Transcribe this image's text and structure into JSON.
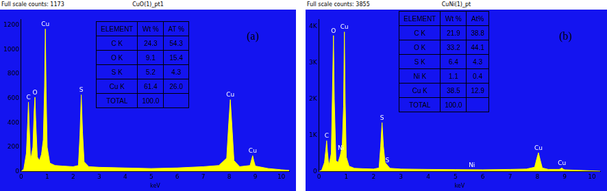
{
  "chart_data": [
    {
      "type": "area",
      "title": "CuO(1)_pt1",
      "subtitle": "Full scale counts: 1173",
      "panel_label": "(a)",
      "x_label": "keV",
      "color": "#ffff00",
      "grid": false,
      "x": [
        0,
        0.1,
        0.2,
        0.25,
        0.28,
        0.31,
        0.36,
        0.45,
        0.5,
        0.53,
        0.56,
        0.62,
        0.7,
        0.78,
        0.85,
        0.9,
        0.93,
        0.96,
        1.0,
        1.1,
        1.3,
        1.6,
        2.0,
        2.2,
        2.26,
        2.31,
        2.36,
        2.42,
        2.6,
        3.0,
        4.0,
        5.0,
        6.0,
        7.0,
        7.6,
        7.9,
        7.98,
        8.04,
        8.1,
        8.18,
        8.4,
        8.8,
        8.86,
        8.9,
        8.94,
        9.0,
        9.5,
        10.0,
        10.3
      ],
      "values": [
        0,
        20,
        150,
        400,
        570,
        380,
        90,
        200,
        500,
        610,
        420,
        120,
        90,
        140,
        260,
        700,
        1170,
        650,
        200,
        70,
        50,
        45,
        40,
        50,
        300,
        630,
        320,
        80,
        40,
        35,
        30,
        25,
        30,
        40,
        50,
        110,
        400,
        590,
        380,
        90,
        40,
        50,
        100,
        130,
        90,
        45,
        25,
        15,
        10
      ],
      "xlim": [
        0,
        10.3
      ],
      "xticks": [
        0,
        1,
        2,
        3,
        4,
        5,
        6,
        7,
        8,
        9,
        10
      ],
      "ylim": [
        0,
        1250
      ],
      "yticks": [
        0,
        200,
        400,
        600,
        800,
        1000,
        1200
      ],
      "annotations": [
        {
          "text": "C",
          "x": 0.28
        },
        {
          "text": "O",
          "x": 0.53
        },
        {
          "text": "Cu",
          "x": 0.93
        },
        {
          "text": "S",
          "x": 2.31
        },
        {
          "text": "Cu",
          "x": 8.04
        },
        {
          "text": "Cu",
          "x": 8.9
        }
      ],
      "table": {
        "columns": [
          "ELEMENT",
          "Wt %",
          "AT %"
        ],
        "rows": [
          [
            "C K",
            "24.3",
            "54.3"
          ],
          [
            "O K",
            "9.1",
            "15.4"
          ],
          [
            "S K",
            "5.2",
            "4.3"
          ],
          [
            "Cu K",
            "61.4",
            "26.0"
          ],
          [
            "TOTAL",
            "100.0",
            ""
          ]
        ]
      }
    },
    {
      "type": "area",
      "title": "CuNi(1)_pt",
      "subtitle": "Full scale counts: 3855",
      "panel_label": "(b)",
      "x_label": "keV",
      "color": "#ffff00",
      "grid": false,
      "x": [
        0,
        0.1,
        0.2,
        0.25,
        0.28,
        0.31,
        0.36,
        0.45,
        0.5,
        0.53,
        0.56,
        0.62,
        0.7,
        0.78,
        0.85,
        0.9,
        0.93,
        0.96,
        1.0,
        1.1,
        1.3,
        1.6,
        2.0,
        2.2,
        2.26,
        2.31,
        2.36,
        2.42,
        2.6,
        3.0,
        4.0,
        5.0,
        6.0,
        7.0,
        7.6,
        7.9,
        7.98,
        8.04,
        8.1,
        8.18,
        8.4,
        8.8,
        8.86,
        8.9,
        8.94,
        9.0,
        9.5,
        10.0,
        10.3
      ],
      "values": [
        0,
        40,
        250,
        600,
        850,
        550,
        150,
        500,
        2500,
        3750,
        2000,
        300,
        250,
        450,
        700,
        1800,
        3850,
        1900,
        400,
        150,
        90,
        80,
        70,
        100,
        700,
        1350,
        700,
        250,
        90,
        70,
        60,
        55,
        50,
        60,
        70,
        120,
        360,
        520,
        330,
        100,
        60,
        60,
        80,
        100,
        70,
        50,
        35,
        20,
        10
      ],
      "xlim": [
        0,
        10.3
      ],
      "xticks": [
        0,
        1,
        2,
        3,
        4,
        5,
        6,
        7,
        8,
        9,
        10
      ],
      "ylim": [
        0,
        4200
      ],
      "yticks": [
        0,
        {
          "value": 1000,
          "label": "1K"
        },
        {
          "value": 2000,
          "label": "2K"
        },
        {
          "value": 3000,
          "label": "3K"
        },
        {
          "value": 4000,
          "label": "4K"
        }
      ],
      "annotations": [
        {
          "text": "C",
          "x": 0.28
        },
        {
          "text": "O",
          "x": 0.53
        },
        {
          "text": "Ni",
          "x": 0.8
        },
        {
          "text": "Cu",
          "x": 0.93
        },
        {
          "text": "S",
          "x": 2.31
        },
        {
          "text": "S",
          "x": 2.5
        },
        {
          "text": "Ni",
          "x": 5.6
        },
        {
          "text": "Cu",
          "x": 8.04
        },
        {
          "text": "Cu",
          "x": 8.9
        }
      ],
      "table": {
        "columns": [
          "ELEMENT",
          "Wt %",
          "At%"
        ],
        "rows": [
          [
            "C K",
            "21.9",
            "38.8"
          ],
          [
            "O K",
            "33.2",
            "44.1"
          ],
          [
            "S K",
            "6.4",
            "4.3"
          ],
          [
            "Ni K",
            "1.1",
            "0.4"
          ],
          [
            "Cu K",
            "38.5",
            "12.9"
          ],
          [
            "TOTAL",
            "100.0",
            ""
          ]
        ]
      }
    }
  ]
}
